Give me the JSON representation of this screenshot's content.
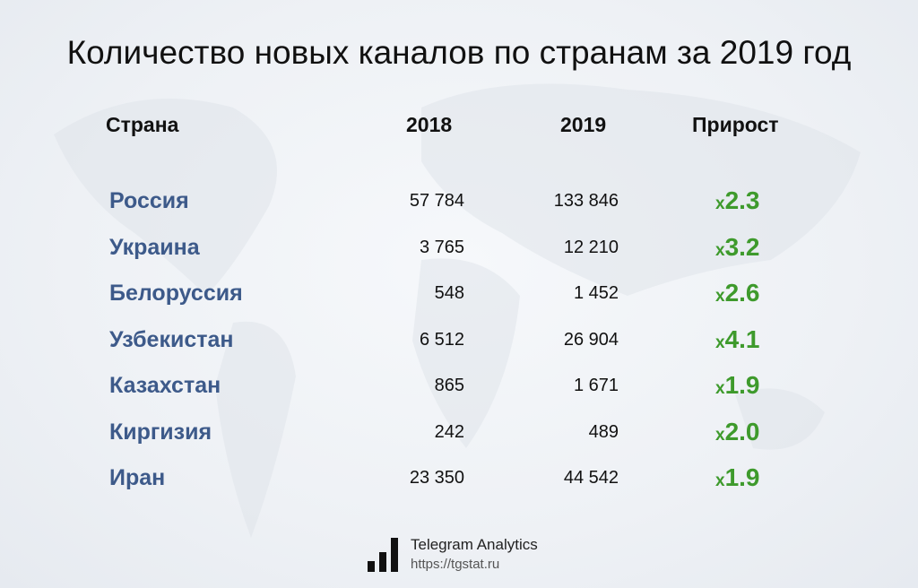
{
  "title": "Количество новых каналов по странам за 2019 год",
  "headers": {
    "country": "Страна",
    "y2018": "2018",
    "y2019": "2019",
    "growth": "Прирост"
  },
  "rows": [
    {
      "country": "Россия",
      "y2018": "57 784",
      "y2019": "133 846",
      "x": "x",
      "growth": "2.3"
    },
    {
      "country": "Украина",
      "y2018": "3 765",
      "y2019": "12 210",
      "x": "x",
      "growth": "3.2"
    },
    {
      "country": "Белоруссия",
      "y2018": "548",
      "y2019": "1 452",
      "x": "x",
      "growth": "2.6"
    },
    {
      "country": "Узбекистан",
      "y2018": "6 512",
      "y2019": "26 904",
      "x": "x",
      "growth": "4.1"
    },
    {
      "country": "Казахстан",
      "y2018": "865",
      "y2019": "1 671",
      "x": "x",
      "growth": "1.9"
    },
    {
      "country": "Киргизия",
      "y2018": "242",
      "y2019": "489",
      "x": "x",
      "growth": "2.0"
    },
    {
      "country": "Иран",
      "y2018": "23 350",
      "y2019": "44 542",
      "x": "x",
      "growth": "1.9"
    }
  ],
  "footer": {
    "brand": "Telegram Analytics",
    "url": "https://tgstat.ru"
  },
  "colors": {
    "country": "#3d5a8a",
    "growth": "#3e9a2c"
  }
}
